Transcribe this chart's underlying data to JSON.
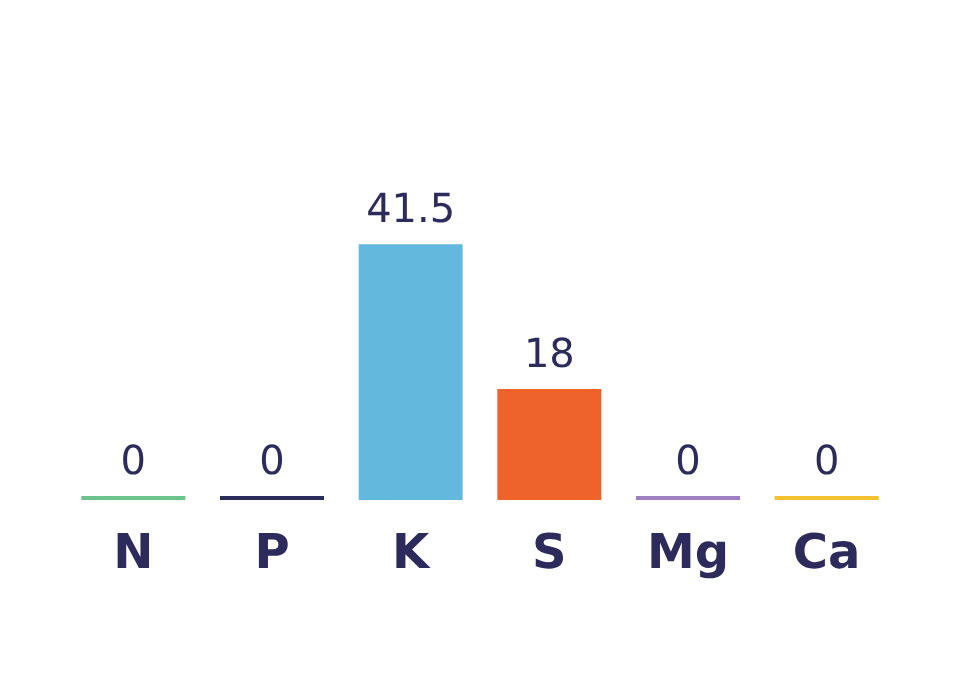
{
  "chart_data": {
    "type": "bar",
    "categories": [
      "N",
      "P",
      "K",
      "S",
      "Mg",
      "Ca"
    ],
    "values": [
      0,
      0,
      41.5,
      18,
      0,
      0
    ],
    "colors": [
      "#6cc38b",
      "#2d2a5c",
      "#63b8de",
      "#ee622b",
      "#9c80c1",
      "#f3c22f"
    ],
    "data_labels": true
  }
}
